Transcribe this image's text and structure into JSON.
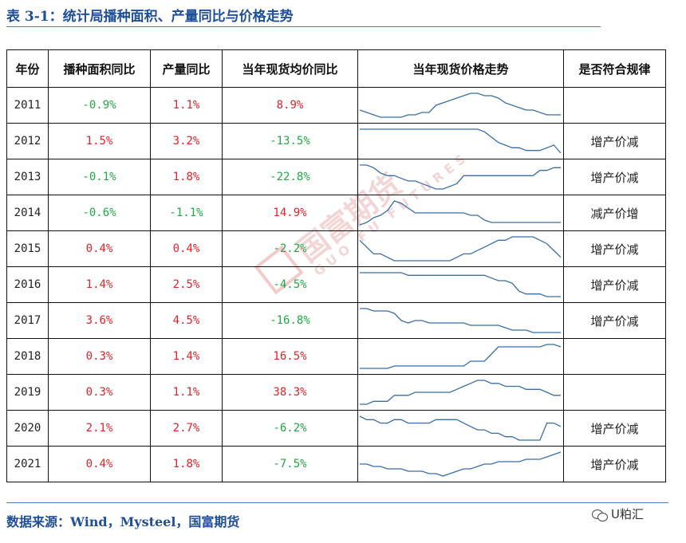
{
  "title": "表 3-1：统计局播种面积、产量同比与价格走势",
  "headers": [
    "年份",
    "播种面积同比",
    "产量同比",
    "当年现货均价同比",
    "当年现货价格走势",
    "是否符合规律"
  ],
  "rows": [
    {
      "year": "2011",
      "area": "-0.9%",
      "output": "1.1%",
      "price": "8.9%",
      "rule": "",
      "spark": [
        3,
        2,
        1,
        0,
        0,
        0,
        0,
        1,
        1,
        2,
        2,
        5,
        6,
        7,
        8,
        9,
        10,
        10,
        9,
        9,
        8,
        6,
        5,
        4,
        3,
        3,
        2,
        1,
        1,
        1
      ]
    },
    {
      "year": "2012",
      "area": "1.5%",
      "output": "3.2%",
      "price": "-13.5%",
      "rule": "增产价减",
      "spark": [
        10,
        10,
        10,
        10,
        10,
        10,
        10,
        10,
        10,
        10,
        10,
        10,
        10,
        10,
        10,
        10,
        10,
        10,
        9,
        7,
        5,
        4,
        3,
        3,
        2,
        2,
        2,
        3,
        4,
        1
      ]
    },
    {
      "year": "2013",
      "area": "-0.1%",
      "output": "1.8%",
      "price": "-22.8%",
      "rule": "增产价减",
      "spark": [
        10,
        10,
        9,
        7,
        6,
        6,
        5,
        4,
        4,
        3,
        2,
        1,
        1,
        2,
        3,
        6,
        6,
        6,
        6,
        6,
        6,
        6,
        6,
        6,
        6,
        6,
        8,
        8,
        9,
        9
      ]
    },
    {
      "year": "2014",
      "area": "-0.6%",
      "output": "-1.1%",
      "price": "14.9%",
      "rule": "减产价增",
      "spark": [
        0,
        1,
        3,
        4,
        6,
        10,
        9,
        7,
        5,
        5,
        5,
        5,
        5,
        5,
        5,
        5,
        4,
        4,
        2,
        1,
        1,
        1,
        1,
        1,
        1,
        1,
        1,
        1,
        1,
        1
      ]
    },
    {
      "year": "2015",
      "area": "0.4%",
      "output": "0.4%",
      "price": "-2.2%",
      "rule": "增产价减",
      "spark": [
        7,
        5,
        3,
        3,
        2,
        1,
        1,
        1,
        1,
        1,
        1,
        1,
        1,
        1,
        2,
        3,
        3,
        4,
        5,
        6,
        7,
        7,
        8,
        8,
        8,
        8,
        7,
        6,
        4,
        2
      ]
    },
    {
      "year": "2016",
      "area": "1.4%",
      "output": "2.5%",
      "price": "-4.5%",
      "rule": "增产价减",
      "spark": [
        9,
        9,
        9,
        9,
        9,
        9,
        9,
        8,
        8,
        8,
        8,
        8,
        8,
        8,
        8,
        8,
        8,
        8,
        8,
        7,
        6,
        6,
        5,
        2,
        1,
        1,
        1,
        0,
        0,
        0
      ]
    },
    {
      "year": "2017",
      "area": "3.6%",
      "output": "4.5%",
      "price": "-16.8%",
      "rule": "增产价减",
      "spark": [
        10,
        10,
        9,
        9,
        9,
        8,
        5,
        4,
        5,
        5,
        4,
        4,
        4,
        4,
        4,
        4,
        3,
        3,
        3,
        3,
        3,
        2,
        1,
        1,
        1,
        0,
        0,
        0,
        0,
        0
      ]
    },
    {
      "year": "2018",
      "area": "0.3%",
      "output": "1.4%",
      "price": "16.5%",
      "rule": "",
      "spark": [
        0,
        0,
        0,
        0,
        0,
        1,
        1,
        1,
        1,
        1,
        1,
        1,
        1,
        1,
        1,
        1,
        3,
        3,
        3,
        6,
        9,
        9,
        9,
        9,
        9,
        9,
        9,
        10,
        10,
        9
      ]
    },
    {
      "year": "2019",
      "area": "0.3%",
      "output": "1.1%",
      "price": "38.3%",
      "rule": "",
      "spark": [
        0,
        0,
        1,
        1,
        1,
        3,
        3,
        3,
        4,
        4,
        4,
        4,
        4,
        4,
        5,
        6,
        7,
        8,
        8,
        7,
        7,
        6,
        6,
        6,
        5,
        5,
        5,
        4,
        3,
        3
      ]
    },
    {
      "year": "2020",
      "area": "2.1%",
      "output": "2.7%",
      "price": "-6.2%",
      "rule": "增产价减",
      "spark": [
        9,
        8,
        8,
        7,
        7,
        8,
        8,
        7,
        7,
        7,
        7,
        8,
        8,
        8,
        8,
        7,
        6,
        5,
        5,
        4,
        4,
        3,
        3,
        2,
        2,
        2,
        2,
        7,
        7,
        6
      ]
    },
    {
      "year": "2021",
      "area": "0.4%",
      "output": "1.8%",
      "price": "-7.5%",
      "rule": "增产价减",
      "spark": [
        5,
        5,
        4,
        4,
        3,
        3,
        3,
        2,
        2,
        2,
        1,
        1,
        0,
        1,
        2,
        3,
        3,
        4,
        5,
        5,
        6,
        6,
        6,
        6,
        7,
        7,
        7,
        8,
        9,
        10
      ]
    }
  ],
  "footer": "数据来源：Wind，Mysteel，国富期货",
  "watermark": {
    "cn": "国富期货",
    "en": "GUO FU FUTURES"
  },
  "wechat": "U粕汇",
  "colors": {
    "positive": "#e0242a",
    "negative": "#22a845",
    "line": "#3a6ea5",
    "header_text": "#1f4e9a"
  }
}
